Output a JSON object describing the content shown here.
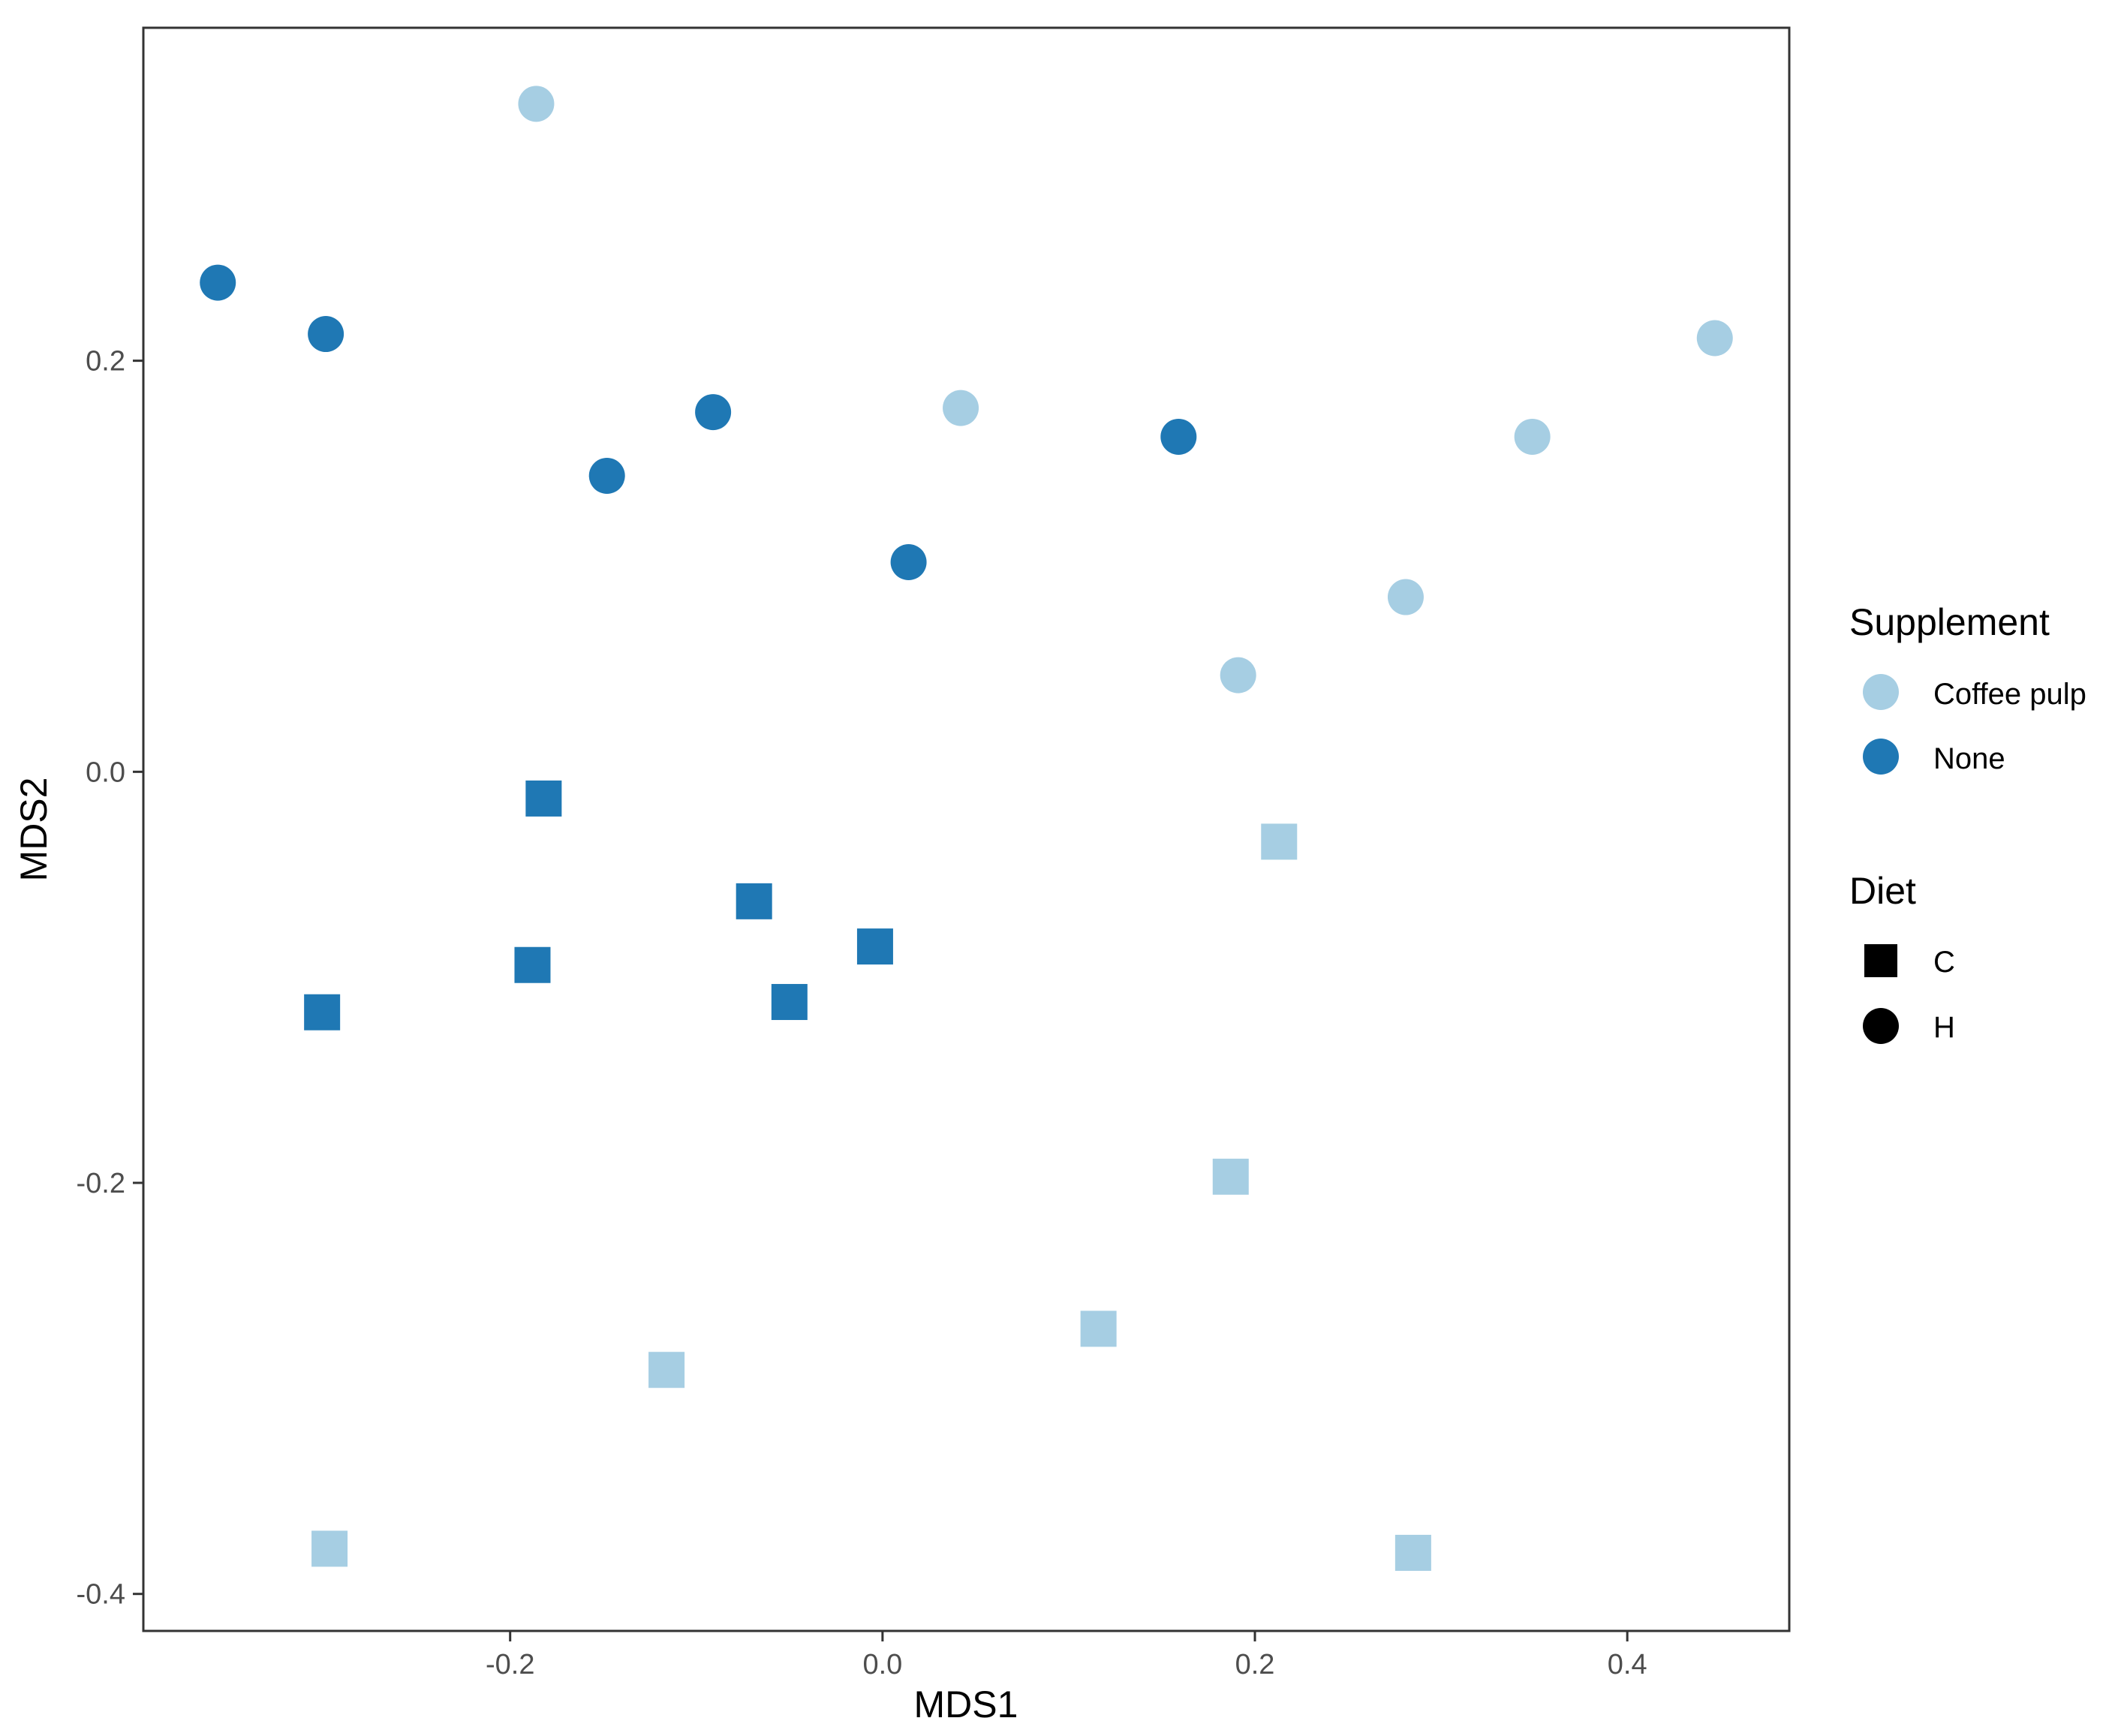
{
  "chart_data": {
    "type": "scatter",
    "xlabel": "MDS1",
    "ylabel": "MDS2",
    "xlim": [
      -0.397,
      0.487
    ],
    "ylim": [
      -0.418,
      0.362
    ],
    "x_ticks": [
      -0.2,
      0.0,
      0.2,
      0.4
    ],
    "x_tick_labels": [
      "-0.2",
      "0.0",
      "0.2",
      "0.4"
    ],
    "y_ticks": [
      -0.4,
      -0.2,
      0.0,
      0.2
    ],
    "y_tick_labels": [
      "-0.4",
      "-0.2",
      "0.0",
      "0.2"
    ],
    "grid": false,
    "legend_placement": "right",
    "colors": {
      "Coffee pulp": "#a6cee3",
      "None": "#1f78b4"
    },
    "legend": {
      "color": {
        "title": "Supplement",
        "items": [
          "Coffee pulp",
          "None"
        ]
      },
      "shape": {
        "title": "Diet",
        "items": [
          "C",
          "H"
        ]
      }
    },
    "points": [
      {
        "supplement": "None",
        "diet": "H",
        "x": -0.357,
        "y": 0.238
      },
      {
        "supplement": "None",
        "diet": "H",
        "x": -0.299,
        "y": 0.213
      },
      {
        "supplement": "None",
        "diet": "H",
        "x": -0.148,
        "y": 0.144
      },
      {
        "supplement": "None",
        "diet": "H",
        "x": -0.091,
        "y": 0.175
      },
      {
        "supplement": "None",
        "diet": "H",
        "x": 0.014,
        "y": 0.102
      },
      {
        "supplement": "None",
        "diet": "H",
        "x": 0.159,
        "y": 0.163
      },
      {
        "supplement": "Coffee pulp",
        "diet": "H",
        "x": -0.186,
        "y": 0.325
      },
      {
        "supplement": "Coffee pulp",
        "diet": "H",
        "x": 0.042,
        "y": 0.177
      },
      {
        "supplement": "Coffee pulp",
        "diet": "H",
        "x": 0.191,
        "y": 0.047
      },
      {
        "supplement": "Coffee pulp",
        "diet": "H",
        "x": 0.281,
        "y": 0.085
      },
      {
        "supplement": "Coffee pulp",
        "diet": "H",
        "x": 0.349,
        "y": 0.163
      },
      {
        "supplement": "Coffee pulp",
        "diet": "H",
        "x": 0.447,
        "y": 0.211
      },
      {
        "supplement": "None",
        "diet": "C",
        "x": -0.301,
        "y": -0.117
      },
      {
        "supplement": "None",
        "diet": "C",
        "x": -0.188,
        "y": -0.094
      },
      {
        "supplement": "None",
        "diet": "C",
        "x": -0.182,
        "y": -0.013
      },
      {
        "supplement": "None",
        "diet": "C",
        "x": -0.069,
        "y": -0.063
      },
      {
        "supplement": "None",
        "diet": "C",
        "x": -0.05,
        "y": -0.112
      },
      {
        "supplement": "None",
        "diet": "C",
        "x": -0.004,
        "y": -0.085
      },
      {
        "supplement": "Coffee pulp",
        "diet": "C",
        "x": -0.297,
        "y": -0.378
      },
      {
        "supplement": "Coffee pulp",
        "diet": "C",
        "x": -0.116,
        "y": -0.291
      },
      {
        "supplement": "Coffee pulp",
        "diet": "C",
        "x": 0.116,
        "y": -0.271
      },
      {
        "supplement": "Coffee pulp",
        "diet": "C",
        "x": 0.187,
        "y": -0.197
      },
      {
        "supplement": "Coffee pulp",
        "diet": "C",
        "x": 0.213,
        "y": -0.034
      },
      {
        "supplement": "Coffee pulp",
        "diet": "C",
        "x": 0.285,
        "y": -0.38
      }
    ]
  }
}
